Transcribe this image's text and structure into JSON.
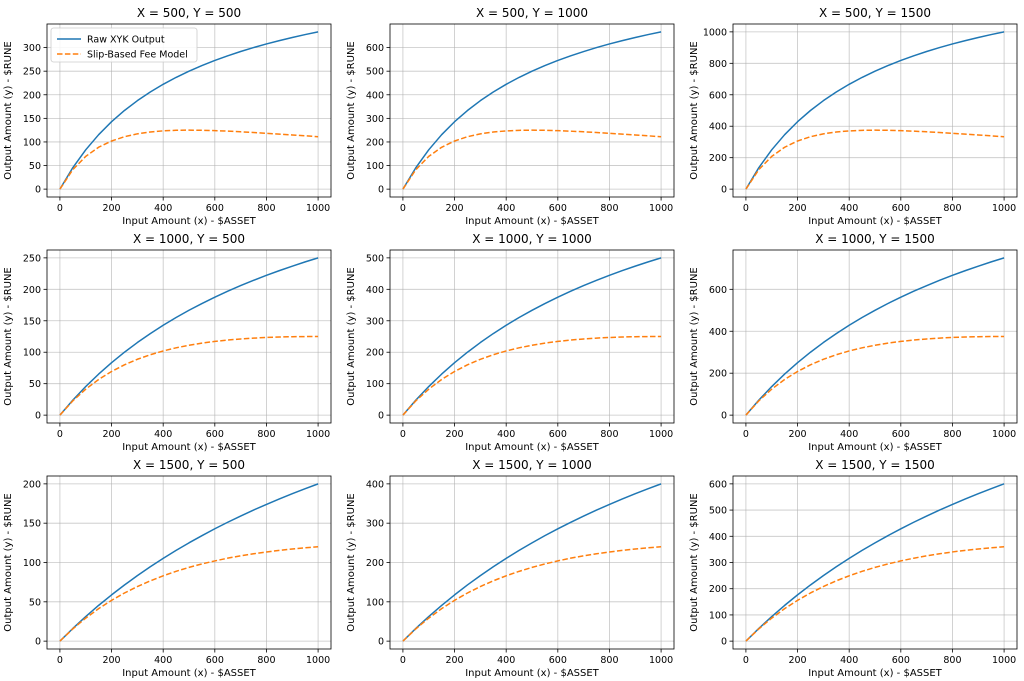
{
  "chart_data": {
    "type": "line",
    "xlabel": "Input Amount (x) - $ASSET",
    "ylabel": "Output Amount (y) - $RUNE",
    "legend": {
      "placement": "top-left of first subplot",
      "entries": [
        {
          "name": "Raw XYK Output",
          "style": "solid",
          "color": "#1f77b4"
        },
        {
          "name": "Slip-Based Fee Model",
          "style": "dashed",
          "color": "#ff7f0e"
        }
      ]
    },
    "grid": true,
    "x": [
      0,
      50,
      100,
      150,
      200,
      250,
      300,
      350,
      400,
      450,
      500,
      550,
      600,
      650,
      700,
      750,
      800,
      850,
      900,
      950,
      1000
    ],
    "xlim": [
      -50,
      1050
    ],
    "xticks": [
      "0",
      "200",
      "400",
      "600",
      "800",
      "1000"
    ],
    "xtick_values": [
      0,
      200,
      400,
      600,
      800,
      1000
    ],
    "subplots": [
      {
        "title": "X = 500, Y = 500",
        "ylim": [
          -16.7,
          350
        ],
        "yticks": [
          "0",
          "50",
          "100",
          "150",
          "200",
          "250",
          "300"
        ],
        "ytick_values": [
          0,
          50,
          100,
          150,
          200,
          250,
          300
        ],
        "series": [
          {
            "name": "Raw XYK Output",
            "values": [
              0,
              45.5,
              83.3,
              115.4,
              142.9,
              166.7,
              187.5,
              205.9,
              222.2,
              236.8,
              250.0,
              261.9,
              272.7,
              282.6,
              291.7,
              300.0,
              307.7,
              314.8,
              321.4,
              327.6,
              333.3
            ]
          },
          {
            "name": "Slip-Based Fee Model",
            "values": [
              0,
              41.3,
              69.4,
              88.8,
              102.0,
              111.1,
              117.2,
              121.1,
              123.5,
              124.7,
              125.0,
              124.7,
              124.0,
              122.9,
              121.5,
              120.0,
              118.3,
              116.6,
              114.8,
              113.0,
              111.1
            ]
          }
        ]
      },
      {
        "title": "X = 500, Y = 1000",
        "ylim": [
          -33.3,
          700
        ],
        "yticks": [
          "0",
          "100",
          "200",
          "300",
          "400",
          "500",
          "600"
        ],
        "ytick_values": [
          0,
          100,
          200,
          300,
          400,
          500,
          600
        ],
        "series": [
          {
            "name": "Raw XYK Output",
            "values": [
              0,
              90.9,
              166.7,
              230.8,
              285.7,
              333.3,
              375.0,
              411.8,
              444.4,
              473.7,
              500.0,
              523.8,
              545.5,
              565.2,
              583.3,
              600.0,
              615.4,
              629.6,
              642.9,
              655.2,
              666.7
            ]
          },
          {
            "name": "Slip-Based Fee Model",
            "values": [
              0,
              82.6,
              138.9,
              177.5,
              204.1,
              222.2,
              234.4,
              242.2,
              246.9,
              249.3,
              250.0,
              249.4,
              247.9,
              245.7,
              243.1,
              240.0,
              236.7,
              233.2,
              229.6,
              226.0,
              222.2
            ]
          }
        ]
      },
      {
        "title": "X = 500, Y = 1500",
        "ylim": [
          -50,
          1050
        ],
        "yticks": [
          "0",
          "200",
          "400",
          "600",
          "800",
          "1000"
        ],
        "ytick_values": [
          0,
          200,
          400,
          600,
          800,
          1000
        ],
        "series": [
          {
            "name": "Raw XYK Output",
            "values": [
              0,
              136.4,
              250.0,
              346.2,
              428.6,
              500.0,
              562.5,
              617.6,
              666.7,
              710.5,
              750.0,
              785.7,
              818.2,
              847.8,
              875.0,
              900.0,
              923.1,
              944.4,
              964.3,
              982.8,
              1000.0
            ]
          },
          {
            "name": "Slip-Based Fee Model",
            "values": [
              0,
              124.0,
              208.3,
              266.3,
              306.1,
              333.3,
              351.6,
              363.3,
              370.4,
              373.9,
              375.0,
              374.1,
              371.9,
              368.6,
              364.6,
              360.0,
              355.0,
              349.8,
              344.4,
              338.9,
              333.3
            ]
          }
        ]
      },
      {
        "title": "X = 1000, Y = 500",
        "ylim": [
          -12.5,
          262.5
        ],
        "yticks": [
          "0",
          "50",
          "100",
          "150",
          "200",
          "250"
        ],
        "ytick_values": [
          0,
          50,
          100,
          150,
          200,
          250
        ],
        "series": [
          {
            "name": "Raw XYK Output",
            "values": [
              0,
              23.8,
              45.5,
              65.2,
              83.3,
              100.0,
              115.4,
              129.6,
              142.9,
              155.2,
              166.7,
              177.4,
              187.5,
              197.0,
              205.9,
              214.3,
              222.2,
              229.7,
              236.8,
              243.6,
              250.0
            ]
          },
          {
            "name": "Slip-Based Fee Model",
            "values": [
              0,
              22.7,
              41.3,
              56.7,
              69.4,
              80.0,
              88.8,
              96.0,
              102.0,
              107.0,
              111.1,
              114.5,
              117.2,
              119.4,
              121.1,
              122.4,
              123.5,
              124.2,
              124.7,
              124.9,
              125.0
            ]
          }
        ]
      },
      {
        "title": "X = 1000, Y = 1000",
        "ylim": [
          -25,
          525
        ],
        "yticks": [
          "0",
          "100",
          "200",
          "300",
          "400",
          "500"
        ],
        "ytick_values": [
          0,
          100,
          200,
          300,
          400,
          500
        ],
        "series": [
          {
            "name": "Raw XYK Output",
            "values": [
              0,
              47.6,
              90.9,
              130.4,
              166.7,
              200.0,
              230.8,
              259.3,
              285.7,
              310.3,
              333.3,
              354.8,
              375.0,
              393.9,
              411.8,
              428.6,
              444.4,
              459.5,
              473.7,
              487.2,
              500.0
            ]
          },
          {
            "name": "Slip-Based Fee Model",
            "values": [
              0,
              45.4,
              82.6,
              113.4,
              138.9,
              160.0,
              177.5,
              192.0,
              204.1,
              214.0,
              222.2,
              228.9,
              234.4,
              238.7,
              242.2,
              244.9,
              246.9,
              248.4,
              249.3,
              249.8,
              250.0
            ]
          }
        ]
      },
      {
        "title": "X = 1000, Y = 1500",
        "ylim": [
          -37.5,
          787.5
        ],
        "yticks": [
          "0",
          "200",
          "400",
          "600"
        ],
        "ytick_values": [
          0,
          200,
          400,
          600
        ],
        "series": [
          {
            "name": "Raw XYK Output",
            "values": [
              0,
              71.4,
              136.4,
              195.7,
              250.0,
              300.0,
              346.2,
              388.9,
              428.6,
              465.5,
              500.0,
              532.3,
              562.5,
              590.9,
              617.6,
              642.9,
              666.7,
              689.2,
              710.5,
              730.8,
              750.0
            ]
          },
          {
            "name": "Slip-Based Fee Model",
            "values": [
              0,
              68.0,
              124.0,
              170.1,
              208.3,
              240.0,
              266.3,
              288.1,
              306.1,
              321.0,
              333.3,
              343.4,
              351.6,
              358.1,
              363.3,
              367.3,
              370.4,
              372.6,
              373.9,
              374.8,
              375.0
            ]
          }
        ]
      },
      {
        "title": "X = 1500, Y = 500",
        "ylim": [
          -10,
          210
        ],
        "yticks": [
          "0",
          "50",
          "100",
          "150",
          "200"
        ],
        "ytick_values": [
          0,
          50,
          100,
          150,
          200
        ],
        "series": [
          {
            "name": "Raw XYK Output",
            "values": [
              0,
              16.1,
              31.3,
              45.5,
              58.8,
              71.4,
              83.3,
              94.6,
              105.3,
              115.4,
              125.0,
              134.1,
              142.9,
              151.2,
              159.1,
              166.7,
              173.9,
              180.9,
              187.5,
              193.9,
              200.0
            ]
          },
          {
            "name": "Slip-Based Fee Model",
            "values": [
              0,
              15.6,
              29.3,
              41.3,
              51.9,
              61.2,
              69.4,
              76.6,
              83.1,
              88.8,
              93.8,
              98.2,
              102.0,
              105.5,
              108.5,
              111.1,
              113.4,
              115.4,
              117.2,
              118.7,
              120.0
            ]
          }
        ]
      },
      {
        "title": "X = 1500, Y = 1000",
        "ylim": [
          -20,
          420
        ],
        "yticks": [
          "0",
          "100",
          "200",
          "300",
          "400"
        ],
        "ytick_values": [
          0,
          100,
          200,
          300,
          400
        ],
        "series": [
          {
            "name": "Raw XYK Output",
            "values": [
              0,
              32.3,
              62.5,
              90.9,
              117.6,
              142.9,
              166.7,
              189.2,
              210.5,
              230.8,
              250.0,
              268.3,
              285.7,
              302.3,
              318.2,
              333.3,
              347.8,
              361.7,
              375.0,
              387.8,
              400.0
            ]
          },
          {
            "name": "Slip-Based Fee Model",
            "values": [
              0,
              31.2,
              58.6,
              82.6,
              103.8,
              122.4,
              138.9,
              153.4,
              166.2,
              177.5,
              187.5,
              196.3,
              204.1,
              211.0,
              217.0,
              222.2,
              226.8,
              230.8,
              234.4,
              237.4,
              240.0
            ]
          }
        ]
      },
      {
        "title": "X = 1500, Y = 1500",
        "ylim": [
          -30,
          630
        ],
        "yticks": [
          "0",
          "100",
          "200",
          "300",
          "400",
          "500",
          "600"
        ],
        "ytick_values": [
          0,
          100,
          200,
          300,
          400,
          500,
          600
        ],
        "series": [
          {
            "name": "Raw XYK Output",
            "values": [
              0,
              48.4,
              93.8,
              136.4,
              176.5,
              214.3,
              250.0,
              283.8,
              315.8,
              346.2,
              375.0,
              402.4,
              428.6,
              453.5,
              477.3,
              500.0,
              521.7,
              542.6,
              562.5,
              581.6,
              600.0
            ]
          },
          {
            "name": "Slip-Based Fee Model",
            "values": [
              0,
              46.8,
              87.9,
              124.0,
              155.7,
              183.7,
              208.3,
              230.1,
              249.3,
              266.3,
              281.3,
              294.5,
              306.1,
              316.4,
              325.4,
              333.3,
              340.3,
              346.4,
              351.6,
              356.1,
              360.0
            ]
          }
        ]
      }
    ]
  }
}
